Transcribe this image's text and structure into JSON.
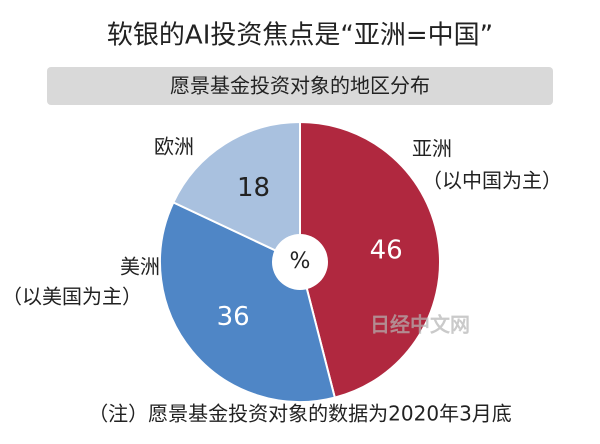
{
  "chart_data": {
    "type": "pie",
    "title": "软银的AI投资焦点是“亚洲=中国”",
    "subtitle": "愿景基金投资对象的地区分布",
    "center_label": "%",
    "categories": [
      [
        "亚洲",
        "（以中国为主）"
      ],
      [
        "美洲",
        "（以美国为主）"
      ],
      [
        "欧洲"
      ]
    ],
    "values": [
      46,
      36,
      18
    ],
    "colors": [
      "#b0283f",
      "#4f86c6",
      "#a9c1df"
    ],
    "note": "（注）愿景基金投资对象的数据为2020年3月底",
    "watermark": "日经中文网"
  }
}
